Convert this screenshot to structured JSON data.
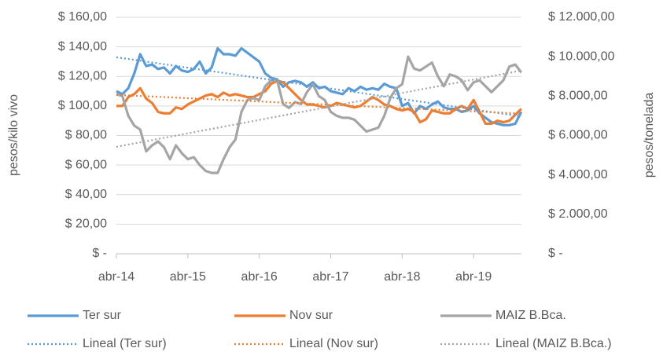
{
  "chart_data": {
    "type": "line",
    "y_label": "pesos/kilo vivo",
    "y2_label": "pesos/tonelada",
    "categories": [
      "abr-14",
      null,
      null,
      null,
      null,
      null,
      null,
      null,
      null,
      null,
      null,
      null,
      "abr-15",
      null,
      null,
      null,
      null,
      null,
      null,
      null,
      null,
      null,
      null,
      null,
      "abr-16",
      null,
      null,
      null,
      null,
      null,
      null,
      null,
      null,
      null,
      null,
      null,
      "abr-17",
      null,
      null,
      null,
      null,
      null,
      null,
      null,
      null,
      null,
      null,
      null,
      "abr-18",
      null,
      null,
      null,
      null,
      null,
      null,
      null,
      null,
      null,
      null,
      null,
      "abr-19",
      null,
      null,
      null,
      null,
      null,
      null,
      null,
      null
    ],
    "series": [
      {
        "name": "Ter sur",
        "color": "#5b9bd5",
        "axis": "y",
        "values": [
          110,
          108,
          112,
          122,
          135,
          127,
          128,
          125,
          126,
          122,
          127,
          124,
          123,
          125,
          130,
          122,
          126,
          139,
          135,
          135,
          134,
          139,
          136,
          133,
          130,
          122,
          119,
          118,
          113,
          116,
          117,
          116,
          113,
          116,
          112,
          113,
          110,
          109,
          108,
          112,
          110,
          113,
          111,
          112,
          111,
          115,
          113,
          112,
          100,
          102,
          95,
          100,
          98,
          101,
          103,
          99,
          98,
          98,
          96,
          97,
          100,
          95,
          92,
          89,
          88,
          87,
          87,
          88,
          96
        ]
      },
      {
        "name": "Nov sur",
        "color": "#ed7d31",
        "axis": "y",
        "values": [
          100,
          100,
          106,
          108,
          112,
          105,
          102,
          96,
          95,
          95,
          99,
          98,
          101,
          103,
          105,
          107,
          108,
          106,
          109,
          107,
          108,
          107,
          106,
          106,
          108,
          110,
          115,
          117,
          116,
          112,
          108,
          104,
          101,
          101,
          100,
          99,
          100,
          102,
          101,
          100,
          99,
          100,
          103,
          106,
          104,
          101,
          100,
          98,
          97,
          98,
          96,
          89,
          91,
          97,
          96,
          95,
          95,
          98,
          100,
          98,
          104,
          96,
          88,
          88,
          90,
          89,
          90,
          94,
          98
        ]
      },
      {
        "name": "MAIZ B.Bca.",
        "color": "#a5a5a5",
        "axis": "y2",
        "values": [
          8100,
          8000,
          7000,
          6500,
          6300,
          5200,
          5500,
          5700,
          5400,
          4800,
          5500,
          5100,
          4800,
          4900,
          4500,
          4200,
          4100,
          4100,
          4800,
          5400,
          5800,
          7200,
          7800,
          7900,
          7800,
          8500,
          8800,
          8800,
          7600,
          7400,
          7700,
          7600,
          8200,
          8600,
          8000,
          7800,
          7200,
          7000,
          6900,
          6900,
          6800,
          6500,
          6200,
          6300,
          6400,
          7000,
          7900,
          8400,
          8600,
          10000,
          9400,
          9300,
          9500,
          9700,
          9000,
          8500,
          9100,
          9000,
          8800,
          8300,
          8700,
          8800,
          8500,
          8200,
          8500,
          8800,
          9500,
          9600,
          9200
        ]
      }
    ],
    "trendlines": [
      {
        "name": "Lineal (Ter sur)",
        "color": "#5b9bd5"
      },
      {
        "name": "Lineal (Nov sur)",
        "color": "#ed7d31"
      },
      {
        "name": "Lineal (MAIZ B.Bca.)",
        "color": "#a5a5a5"
      }
    ],
    "ylim": [
      0,
      160
    ],
    "yticks": [
      {
        "value": 0,
        "label": "$ -"
      },
      {
        "value": 20,
        "label": "$ 20,00"
      },
      {
        "value": 40,
        "label": "$ 40,00"
      },
      {
        "value": 60,
        "label": "$ 60,00"
      },
      {
        "value": 80,
        "label": "$ 80,00"
      },
      {
        "value": 100,
        "label": "$ 100,00"
      },
      {
        "value": 120,
        "label": "$ 120,00"
      },
      {
        "value": 140,
        "label": "$ 140,00"
      },
      {
        "value": 160,
        "label": "$ 160,00"
      }
    ],
    "y2lim": [
      0,
      12000
    ],
    "y2ticks": [
      {
        "value": 0,
        "label": "$ -"
      },
      {
        "value": 2000,
        "label": "$ 2.000,00"
      },
      {
        "value": 4000,
        "label": "$ 4.000,00"
      },
      {
        "value": 6000,
        "label": "$ 6.000,00"
      },
      {
        "value": 8000,
        "label": "$ 8.000,00"
      },
      {
        "value": 10000,
        "label": "$ 10.000,00"
      },
      {
        "value": 12000,
        "label": "$ 12.000,00"
      }
    ],
    "grid": true
  }
}
